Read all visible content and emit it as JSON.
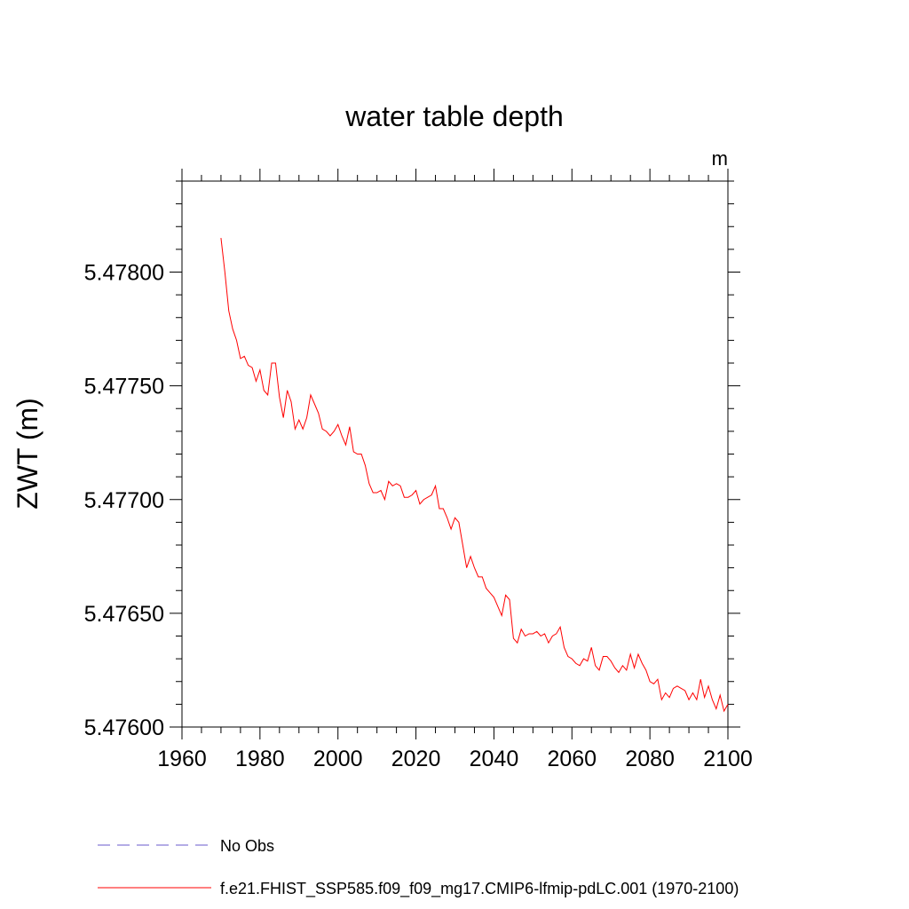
{
  "chart_data": {
    "type": "line",
    "title": "water table depth",
    "units": "m",
    "ylabel": "ZWT  (m)",
    "xlabel": "",
    "xlim": [
      1960,
      2100
    ],
    "ylim": [
      5.476,
      5.4784
    ],
    "x_ticks": [
      1960,
      1980,
      2000,
      2020,
      2040,
      2060,
      2080,
      2100
    ],
    "y_ticks": [
      5.476,
      5.4765,
      5.477,
      5.4775,
      5.478
    ],
    "y_tick_labels": [
      "5.47600",
      "5.47650",
      "5.47700",
      "5.47750",
      "5.47800"
    ],
    "grid": false,
    "legend_position": "bottom",
    "series": [
      {
        "name": "No Obs",
        "color": "#6a5acd",
        "dash": "dashed",
        "x": [],
        "y": []
      },
      {
        "name": "f.e21.FHIST_SSP585.f09_f09_mg17.CMIP6-lfmip-pdLC.001 (1970-2100)",
        "color": "#ff0000",
        "dash": "solid",
        "x": [
          1970,
          1971,
          1972,
          1973,
          1974,
          1975,
          1976,
          1977,
          1978,
          1979,
          1980,
          1981,
          1982,
          1983,
          1984,
          1985,
          1986,
          1987,
          1988,
          1989,
          1990,
          1991,
          1992,
          1993,
          1994,
          1995,
          1996,
          1997,
          1998,
          1999,
          2000,
          2001,
          2002,
          2003,
          2004,
          2005,
          2006,
          2007,
          2008,
          2009,
          2010,
          2011,
          2012,
          2013,
          2014,
          2015,
          2016,
          2017,
          2018,
          2019,
          2020,
          2021,
          2022,
          2023,
          2024,
          2025,
          2026,
          2027,
          2028,
          2029,
          2030,
          2031,
          2032,
          2033,
          2034,
          2035,
          2036,
          2037,
          2038,
          2039,
          2040,
          2041,
          2042,
          2043,
          2044,
          2045,
          2046,
          2047,
          2048,
          2049,
          2050,
          2051,
          2052,
          2053,
          2054,
          2055,
          2056,
          2057,
          2058,
          2059,
          2060,
          2061,
          2062,
          2063,
          2064,
          2065,
          2066,
          2067,
          2068,
          2069,
          2070,
          2071,
          2072,
          2073,
          2074,
          2075,
          2076,
          2077,
          2078,
          2079,
          2080,
          2081,
          2082,
          2083,
          2084,
          2085,
          2086,
          2087,
          2088,
          2089,
          2090,
          2091,
          2092,
          2093,
          2094,
          2095,
          2096,
          2097,
          2098,
          2099,
          2100
        ],
        "y": [
          5.47815,
          5.478,
          5.47783,
          5.47775,
          5.4777,
          5.47762,
          5.47763,
          5.47759,
          5.47758,
          5.47752,
          5.47757,
          5.47748,
          5.47746,
          5.4776,
          5.4776,
          5.47745,
          5.47736,
          5.47748,
          5.47743,
          5.47731,
          5.47735,
          5.47731,
          5.47736,
          5.47746,
          5.47742,
          5.47738,
          5.47731,
          5.4773,
          5.47728,
          5.4773,
          5.47733,
          5.47728,
          5.47724,
          5.47732,
          5.47721,
          5.4772,
          5.4772,
          5.47715,
          5.47707,
          5.47703,
          5.47703,
          5.47704,
          5.477,
          5.47708,
          5.47706,
          5.47707,
          5.47706,
          5.47701,
          5.47701,
          5.47702,
          5.47704,
          5.47698,
          5.477,
          5.47701,
          5.47702,
          5.47706,
          5.47696,
          5.47696,
          5.47692,
          5.47687,
          5.47692,
          5.4769,
          5.4768,
          5.4767,
          5.47675,
          5.4767,
          5.47666,
          5.47666,
          5.47661,
          5.47659,
          5.47657,
          5.47653,
          5.47649,
          5.47658,
          5.47656,
          5.47639,
          5.47637,
          5.47643,
          5.4764,
          5.47641,
          5.47641,
          5.47642,
          5.4764,
          5.47641,
          5.47637,
          5.4764,
          5.47641,
          5.47644,
          5.47635,
          5.47631,
          5.4763,
          5.47628,
          5.47627,
          5.4763,
          5.47629,
          5.47635,
          5.47627,
          5.47625,
          5.47631,
          5.47631,
          5.47629,
          5.47626,
          5.47624,
          5.47627,
          5.47625,
          5.47632,
          5.47626,
          5.47632,
          5.47628,
          5.47625,
          5.4762,
          5.47619,
          5.47621,
          5.47612,
          5.47615,
          5.47613,
          5.47617,
          5.47618,
          5.47617,
          5.47616,
          5.47612,
          5.47615,
          5.47612,
          5.47621,
          5.47613,
          5.47618,
          5.47612,
          5.47608,
          5.47614,
          5.47607,
          5.4761
        ]
      }
    ]
  }
}
